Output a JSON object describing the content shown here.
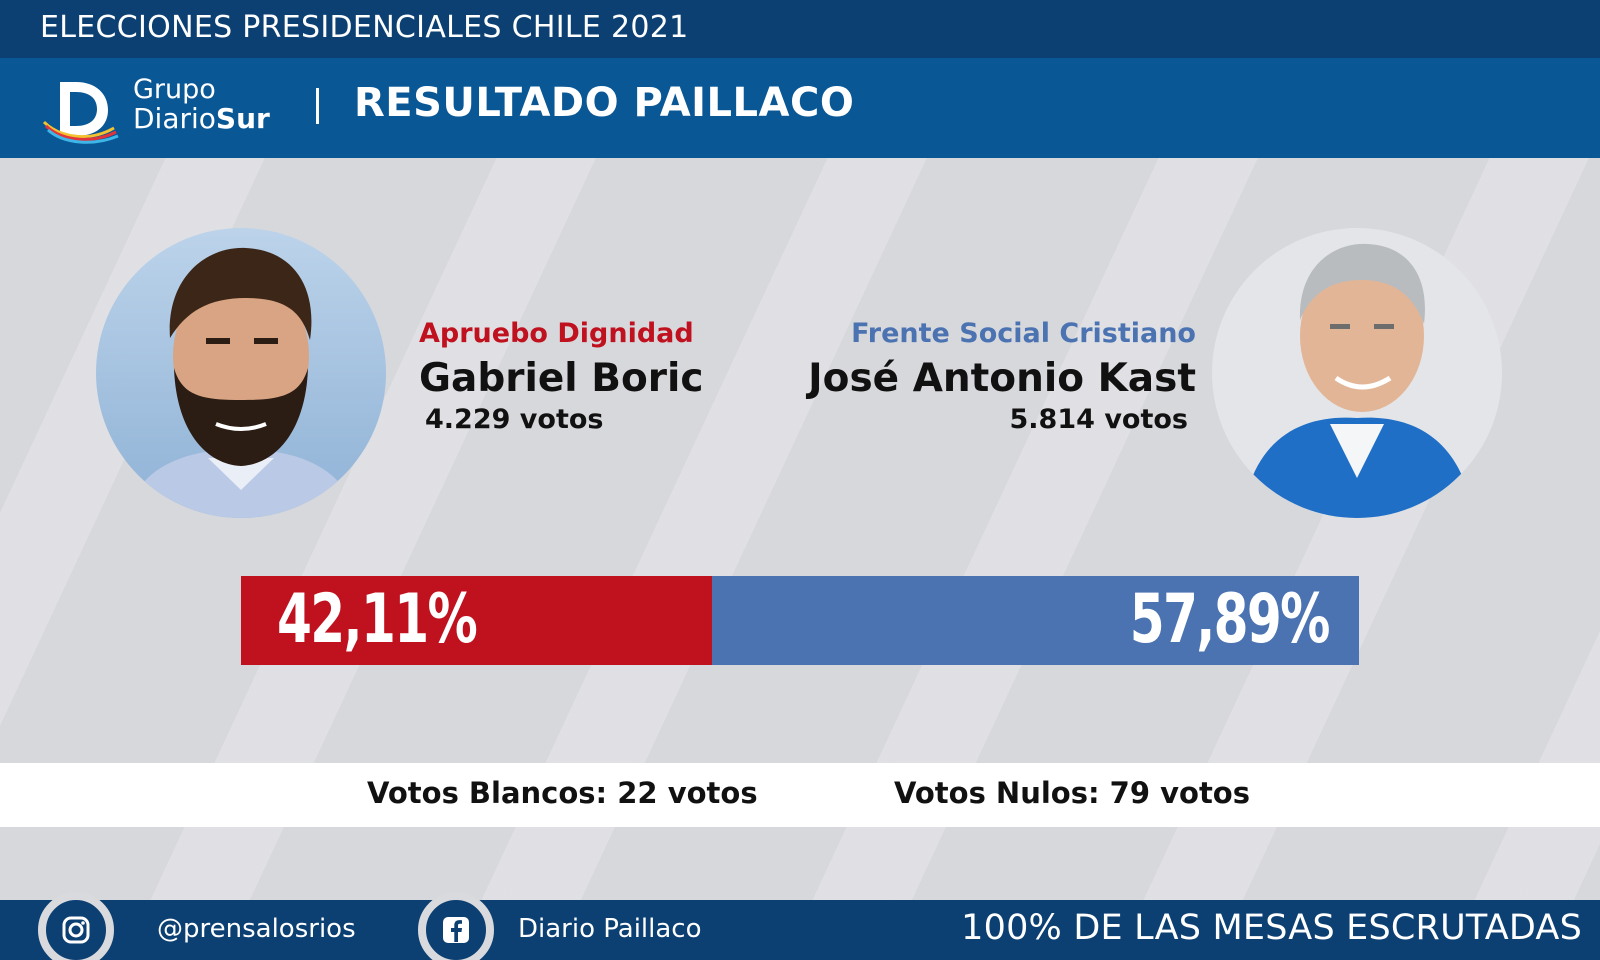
{
  "top_bar": {
    "title": "ELECCIONES PRESIDENCIALES CHILE 2021"
  },
  "header": {
    "logo": {
      "line1": "Grupo",
      "line2_regular": "Diario",
      "line2_bold": "Sur"
    },
    "result_title": "RESULTADO PAILLACO"
  },
  "candidates": [
    {
      "party": "Apruebo Dignidad",
      "name": "Gabriel Boric",
      "votes": "4.229 votos",
      "color": "#c0111f"
    },
    {
      "party": "Frente Social Cristiano",
      "name": "José Antonio Kast",
      "votes": "5.814 votos",
      "color": "#4b73b2"
    }
  ],
  "result_bar": {
    "left_label": "42,11%",
    "right_label": "57,89%",
    "left_share": 0.4211,
    "right_share": 0.5789
  },
  "extra_votes": {
    "blancos": "Votos Blancos: 22 votos",
    "nulos": "Votos Nulos: 79 votos"
  },
  "footer": {
    "instagram_handle": "@prensalosrios",
    "facebook_handle": "Diario Paillaco",
    "status": "100% DE LAS MESAS ESCRUTADAS",
    "icons": [
      "instagram-icon",
      "facebook-icon"
    ]
  }
}
